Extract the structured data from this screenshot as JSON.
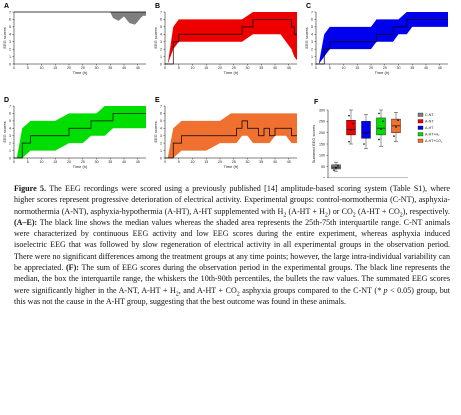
{
  "figure": {
    "panels": [
      {
        "letter": "A",
        "color": "#7f7f7f",
        "label_x": "Time (h)",
        "label_y": "EEG scores"
      },
      {
        "letter": "B",
        "color": "#ee0000",
        "label_x": "Time (h)",
        "label_y": "EEG scores"
      },
      {
        "letter": "C",
        "color": "#0000ee",
        "label_x": "Time (h)",
        "label_y": "EEG scores"
      },
      {
        "letter": "D",
        "color": "#00dd00",
        "label_x": "Time (h)",
        "label_y": "EEG scores"
      },
      {
        "letter": "E",
        "color": "#f07030",
        "label_x": "Time (h)",
        "label_y": "EEG scores"
      }
    ],
    "panel_f": {
      "letter": "F",
      "label_y": "Summed EEG scores"
    },
    "x_ticks": [
      "0",
      "5",
      "10",
      "15",
      "20",
      "25",
      "30",
      "35",
      "40",
      "45"
    ],
    "y_ticks": [
      "0",
      "1",
      "2",
      "3",
      "4",
      "5",
      "6",
      "7"
    ],
    "f_ticks": [
      "0",
      "50",
      "100",
      "150",
      "200",
      "250",
      "300"
    ]
  },
  "chart_data": [
    {
      "type": "area",
      "panel": "A",
      "x": [
        0,
        5,
        10,
        15,
        20,
        25,
        30,
        35,
        36,
        38,
        40,
        42,
        44,
        45,
        46,
        47,
        48
      ],
      "median": [
        7,
        7,
        7,
        7,
        7,
        7,
        7,
        7,
        7,
        7,
        7,
        7,
        7,
        7,
        7,
        7,
        7
      ],
      "q_low": [
        7,
        7,
        7,
        7,
        7,
        7,
        7,
        7,
        6.2,
        5.8,
        6.4,
        5.5,
        5.3,
        5.7,
        6.2,
        6.5,
        6.5
      ],
      "q_high": [
        7,
        7,
        7,
        7,
        7,
        7,
        7,
        7,
        7,
        7,
        7,
        7,
        7,
        7,
        7,
        7,
        7
      ],
      "ylim": [
        0,
        7
      ],
      "xlim": [
        0,
        48
      ]
    },
    {
      "type": "area",
      "panel": "B",
      "x": [
        0,
        1,
        3,
        5,
        8,
        12,
        16,
        20,
        24,
        28,
        32,
        36,
        38,
        40,
        42,
        44,
        46,
        47,
        48
      ],
      "median": [
        0,
        0,
        3,
        4,
        4,
        4,
        4,
        4,
        4,
        5,
        6,
        6,
        6,
        6,
        6,
        6,
        5,
        4,
        4
      ],
      "q_low": [
        0,
        0,
        2,
        3,
        3,
        3,
        3,
        3,
        3,
        3,
        4,
        4,
        4,
        4,
        4,
        3,
        2,
        1,
        0.5
      ],
      "q_high": [
        0,
        0,
        5,
        6,
        6,
        6,
        6,
        6,
        6,
        6,
        7,
        7,
        7,
        7,
        7,
        7,
        7,
        7,
        7
      ],
      "ylim": [
        0,
        7
      ],
      "xlim": [
        0,
        48
      ]
    },
    {
      "type": "area",
      "panel": "C",
      "x": [
        0,
        1,
        3,
        5,
        10,
        15,
        20,
        22,
        25,
        28,
        30,
        33,
        35,
        38,
        40,
        44,
        48
      ],
      "median": [
        0,
        0,
        2,
        3,
        3,
        3,
        3,
        4,
        4,
        5,
        5,
        6,
        6,
        6,
        6,
        6,
        6
      ],
      "q_low": [
        0,
        0,
        1,
        2,
        2,
        2,
        2,
        3,
        3,
        3,
        4,
        4,
        5,
        5,
        5,
        5,
        5
      ],
      "q_high": [
        0,
        0,
        4,
        5,
        5,
        5,
        5,
        6,
        6,
        6,
        6,
        7,
        7,
        7,
        7,
        7,
        7
      ],
      "ylim": [
        0,
        7
      ],
      "xlim": [
        0,
        48
      ]
    },
    {
      "type": "area",
      "panel": "D",
      "x": [
        0,
        1,
        3,
        6,
        10,
        15,
        20,
        25,
        28,
        30,
        33,
        36,
        40,
        44,
        48
      ],
      "median": [
        0,
        0,
        2,
        3,
        3,
        3,
        4,
        4,
        5,
        5,
        5,
        6,
        6,
        6,
        6
      ],
      "q_low": [
        0,
        0,
        0,
        1,
        1,
        1,
        2,
        2,
        3,
        3,
        3,
        4,
        4,
        4,
        4
      ],
      "q_high": [
        0,
        0,
        4,
        5,
        5,
        5,
        6,
        6,
        6,
        6,
        7,
        7,
        7,
        7,
        7
      ],
      "ylim": [
        0,
        7
      ],
      "xlim": [
        0,
        48
      ]
    },
    {
      "type": "area",
      "panel": "E",
      "x": [
        0,
        1,
        3,
        6,
        10,
        15,
        20,
        24,
        26,
        28,
        30,
        32,
        34,
        36,
        38,
        40,
        42,
        44,
        46,
        48
      ],
      "median": [
        0,
        0,
        2,
        3,
        3,
        3,
        3,
        3,
        4,
        5,
        4,
        4,
        3,
        4,
        3,
        4,
        4,
        4,
        3,
        3
      ],
      "q_low": [
        0,
        0,
        0,
        1,
        1,
        1,
        2,
        2,
        2,
        3,
        3,
        2,
        2,
        2,
        2,
        3,
        3,
        3,
        2,
        2
      ],
      "q_high": [
        0,
        0,
        4,
        5,
        5,
        5,
        5,
        6,
        6,
        6,
        6,
        6,
        6,
        6,
        6,
        6,
        6,
        6,
        6,
        6
      ],
      "ylim": [
        0,
        7
      ],
      "xlim": [
        0,
        48
      ]
    },
    {
      "type": "box",
      "panel": "F",
      "legend": [
        "C-NT",
        "A-NT",
        "A-HT",
        "A-HT+H₂",
        "A-HT+CO₂"
      ],
      "colors": [
        "#7f7f7f",
        "#ee0000",
        "#0000ee",
        "#00dd00",
        "#f07030"
      ],
      "groups": [
        {
          "name": "C-NT",
          "whisker_low": 30,
          "q1": 40,
          "median": 48,
          "q3": 58,
          "whisker_high": 70,
          "points": [
            35,
            45,
            55
          ]
        },
        {
          "name": "A-NT",
          "whisker_low": 150,
          "q1": 190,
          "median": 215,
          "q3": 255,
          "whisker_high": 300,
          "points": [
            160,
            210,
            240,
            275
          ]
        },
        {
          "name": "A-HT",
          "whisker_low": 130,
          "q1": 175,
          "median": 200,
          "q3": 250,
          "whisker_high": 280,
          "points": [
            150,
            195,
            230
          ]
        },
        {
          "name": "A-HT+H₂",
          "whisker_low": 140,
          "q1": 190,
          "median": 220,
          "q3": 265,
          "whisker_high": 300,
          "points": [
            170,
            215,
            250,
            285
          ]
        },
        {
          "name": "A-HT+CO₂",
          "whisker_low": 160,
          "q1": 200,
          "median": 230,
          "q3": 260,
          "whisker_high": 290,
          "points": [
            185,
            225,
            255
          ]
        }
      ],
      "ylim": [
        0,
        300
      ]
    }
  ],
  "caption": {
    "figure_label": "Figure 5.",
    "intro": " The EEG recordings were scored using a previously published [14] amplitude-based scoring system (Table S1), where higher scores represent progressive deterioration of electrical activity. Experimental groups: control-normothermia (C-NT), asphyxia-normothermia (A-NT), asphyxia-hypothermia (A-HT), A-HT supplemented with H",
    "h2_sub": "2",
    "mid1": " (A-HT + H",
    "h2_sub2": "2",
    "mid2": ") or CO",
    "co2_sub": "2",
    "mid3": " (A-HT + CO",
    "co2_sub2": "2",
    "mid4": "), respectively. ",
    "ae_label": "(A–E):",
    "ae_text": " The black line shows the median values whereas the shaded area represents the 25th-75th interquartile range. C-NT animals were characterized by continuous EEG activity and low EEG scores during the entire experiment, whereas asphyxia induced isoelectric EEG that was followed by slow regeneration of electrical activity in all experimental groups in the observation period. There were no significant differences among the treatment groups at any time points; however, the large intra-individual variability can be appreciated. ",
    "f_label": "(F):",
    "f_text1": " The sum of EEG scores during the observation period in the experimental groups. The black line represents the median, the box the interquartile range, the whiskers the 10th-90th percentiles, the bullets the raw values. The summated EEG scores were significantly higher in the A-NT, A-HT + H",
    "f_h2": "2",
    "f_text2": ", and A-HT + CO",
    "f_co2": "2",
    "f_text3": " asphyxia groups compared to the C-NT (",
    "f_p": "* p",
    "f_text4": " < 0.05) group, but this was not the cause in the A-HT group, suggesting that the best outcome was found in these animals."
  }
}
